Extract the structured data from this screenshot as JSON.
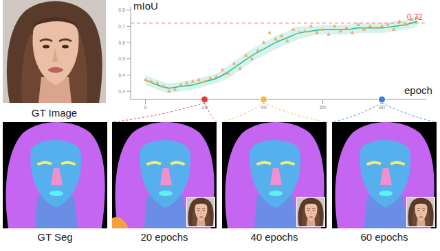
{
  "gt_image": {
    "label": "GT Image"
  },
  "chart_data": {
    "type": "scatter",
    "y_label": "mIoU",
    "x_label": "epoch",
    "xlim": [
      -5,
      95
    ],
    "ylim": [
      0.25,
      0.82
    ],
    "xticks": [
      0,
      20,
      40,
      60,
      80
    ],
    "yticks": [
      0.3,
      0.4,
      0.5,
      0.6,
      0.7,
      0.8
    ],
    "grid": false,
    "series": [
      {
        "type": "scatter",
        "marker": "triangle",
        "color": "#f5a86a",
        "x": [
          0,
          2,
          4,
          6,
          8,
          10,
          12,
          14,
          16,
          18,
          20,
          22,
          24,
          26,
          28,
          30,
          32,
          34,
          36,
          38,
          40,
          42,
          44,
          46,
          48,
          50,
          52,
          54,
          56,
          58,
          60,
          62,
          64,
          66,
          68,
          70,
          72,
          74,
          76,
          78,
          80,
          82,
          84,
          86,
          88,
          90,
          92
        ],
        "values": [
          0.37,
          0.36,
          0.35,
          0.33,
          0.3,
          0.31,
          0.34,
          0.35,
          0.36,
          0.37,
          0.36,
          0.38,
          0.39,
          0.43,
          0.41,
          0.47,
          0.44,
          0.52,
          0.5,
          0.55,
          0.6,
          0.66,
          0.62,
          0.64,
          0.61,
          0.68,
          0.66,
          0.67,
          0.7,
          0.66,
          0.68,
          0.65,
          0.7,
          0.67,
          0.69,
          0.66,
          0.71,
          0.68,
          0.7,
          0.69,
          0.7,
          0.71,
          0.68,
          0.73,
          0.71,
          0.74,
          0.75
        ]
      },
      {
        "type": "line",
        "line_style": "solid",
        "color": "#1fbf8f",
        "x": [
          0,
          4,
          8,
          12,
          16,
          20,
          24,
          28,
          32,
          36,
          40,
          44,
          48,
          52,
          56,
          60,
          64,
          68,
          72,
          76,
          80,
          84,
          88,
          92
        ],
        "values": [
          0.37,
          0.34,
          0.32,
          0.33,
          0.34,
          0.36,
          0.38,
          0.42,
          0.47,
          0.52,
          0.56,
          0.6,
          0.63,
          0.66,
          0.67,
          0.68,
          0.68,
          0.68,
          0.69,
          0.69,
          0.69,
          0.7,
          0.71,
          0.73
        ],
        "lower": [
          0.34,
          0.31,
          0.29,
          0.3,
          0.31,
          0.33,
          0.35,
          0.38,
          0.43,
          0.48,
          0.52,
          0.56,
          0.59,
          0.62,
          0.64,
          0.65,
          0.65,
          0.65,
          0.66,
          0.66,
          0.66,
          0.67,
          0.68,
          0.7
        ],
        "upper": [
          0.4,
          0.37,
          0.35,
          0.36,
          0.37,
          0.39,
          0.41,
          0.46,
          0.51,
          0.56,
          0.6,
          0.64,
          0.67,
          0.7,
          0.7,
          0.71,
          0.71,
          0.71,
          0.72,
          0.72,
          0.72,
          0.73,
          0.74,
          0.76
        ]
      }
    ],
    "annotations": [
      {
        "y": 0.72,
        "label": "0.72",
        "color": "#f05a5a",
        "line_style": "dashed"
      }
    ],
    "highlights": [
      {
        "x": 20,
        "color": "#e53935"
      },
      {
        "x": 40,
        "color": "#f5b942"
      },
      {
        "x": 80,
        "color": "#3a7fe0"
      }
    ]
  },
  "panels": [
    {
      "label": "GT Seg"
    },
    {
      "label": "20 epochs"
    },
    {
      "label": "40 epochs"
    },
    {
      "label": "60 epochs"
    }
  ]
}
